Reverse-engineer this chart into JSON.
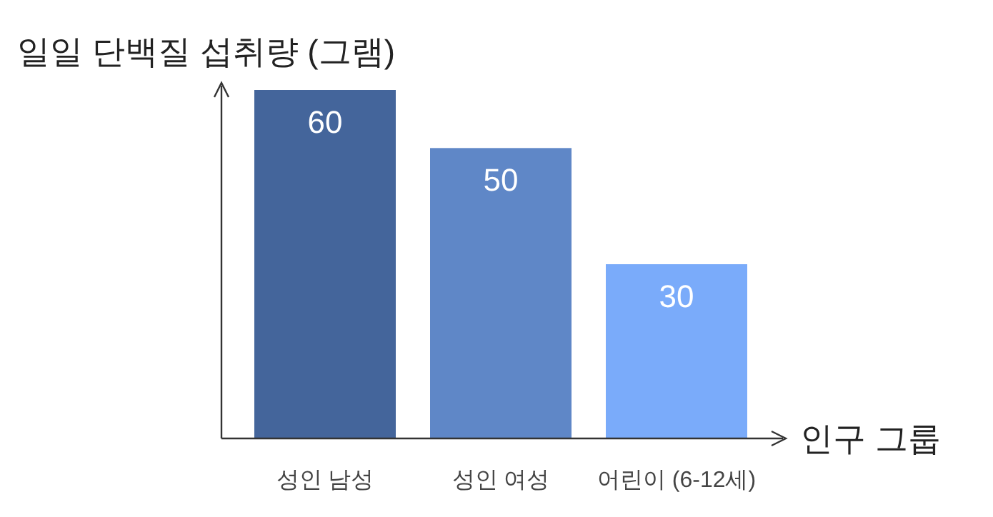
{
  "chart_data": {
    "type": "bar",
    "ylabel": "일일 단백질 섭취량 (그램)",
    "xlabel": "인구 그룹",
    "categories": [
      "성인 남성",
      "성인 여성",
      "어린이 (6-12세)"
    ],
    "values": [
      60,
      50,
      30
    ],
    "colors": [
      "#44659b",
      "#5f87c7",
      "#7aabfa"
    ],
    "data_labels": true,
    "grid": false
  }
}
